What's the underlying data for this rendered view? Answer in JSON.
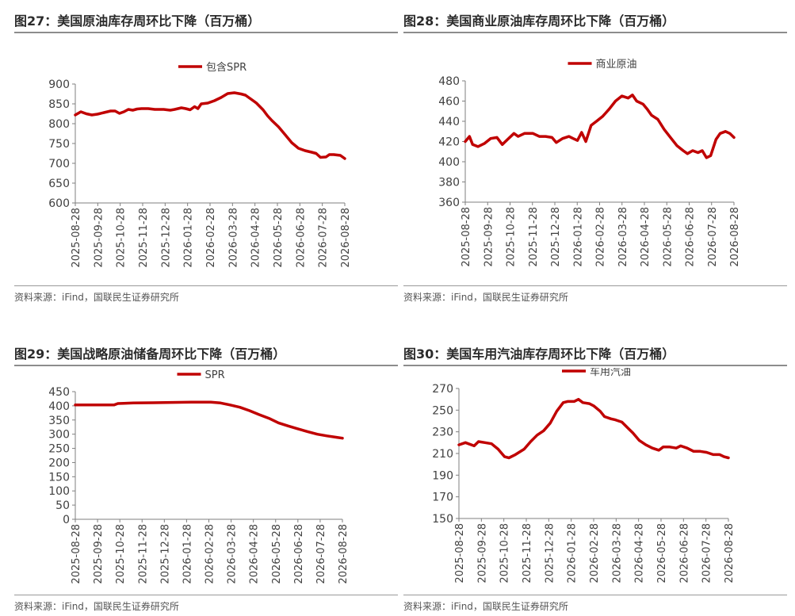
{
  "charts": [
    {
      "title": "图27：美国原油库存周环比下降（百万桶）",
      "source": "资料来源：iFind，国联民生证券研究所",
      "chart_data": {
        "type": "line",
        "ylim": [
          600,
          900
        ],
        "yticks": [
          600,
          650,
          700,
          750,
          800,
          850,
          900
        ],
        "xticks": [
          "2025-08-28",
          "2025-09-28",
          "2025-10-28",
          "2025-11-28",
          "2025-12-28",
          "2026-01-28",
          "2026-02-28",
          "2026-03-28",
          "2026-04-28",
          "2026-05-28",
          "2026-06-28",
          "2026-07-28",
          "2026-08-28"
        ],
        "legend_position": "top-center",
        "grid": false,
        "series": [
          {
            "name": "包含SPR",
            "color": "#c00000",
            "points": [
              [
                0,
                822
              ],
              [
                0.25,
                830
              ],
              [
                0.5,
                825
              ],
              [
                0.75,
                822
              ],
              [
                1,
                824
              ],
              [
                1.3,
                828
              ],
              [
                1.6,
                832
              ],
              [
                1.8,
                832
              ],
              [
                2,
                826
              ],
              [
                2.2,
                830
              ],
              [
                2.4,
                836
              ],
              [
                2.6,
                834
              ],
              [
                2.8,
                837
              ],
              [
                3,
                838
              ],
              [
                3.3,
                838
              ],
              [
                3.6,
                836
              ],
              [
                4,
                836
              ],
              [
                4.3,
                834
              ],
              [
                4.5,
                836
              ],
              [
                4.8,
                840
              ],
              [
                5,
                838
              ],
              [
                5.2,
                835
              ],
              [
                5.4,
                843
              ],
              [
                5.55,
                838
              ],
              [
                5.7,
                850
              ],
              [
                6,
                852
              ],
              [
                6.3,
                858
              ],
              [
                6.6,
                866
              ],
              [
                6.9,
                876
              ],
              [
                7.2,
                878
              ],
              [
                7.5,
                875
              ],
              [
                7.7,
                872
              ],
              [
                8,
                860
              ],
              [
                8.2,
                852
              ],
              [
                8.5,
                835
              ],
              [
                8.7,
                820
              ],
              [
                8.9,
                808
              ],
              [
                9.2,
                792
              ],
              [
                9.5,
                772
              ],
              [
                9.8,
                752
              ],
              [
                10.1,
                738
              ],
              [
                10.4,
                732
              ],
              [
                10.7,
                728
              ],
              [
                10.9,
                725
              ],
              [
                11.1,
                715
              ],
              [
                11.35,
                716
              ],
              [
                11.5,
                722
              ],
              [
                11.7,
                722
              ],
              [
                12,
                720
              ],
              [
                12.2,
                712
              ]
            ]
          }
        ]
      }
    },
    {
      "title": "图28：美国商业原油库存周环比下降（百万桶）",
      "source": "资料来源：iFind，国联民生证券研究所",
      "chart_data": {
        "type": "line",
        "ylim": [
          360,
          480
        ],
        "yticks": [
          360,
          380,
          400,
          420,
          440,
          460,
          480
        ],
        "xticks": [
          "2025-08-28",
          "2025-09-28",
          "2025-10-28",
          "2025-11-28",
          "2025-12-28",
          "2026-01-28",
          "2026-02-28",
          "2026-03-28",
          "2026-04-28",
          "2026-05-28",
          "2026-06-28",
          "2026-07-28",
          "2026-08-28"
        ],
        "legend_position": "top-center",
        "grid": false,
        "series": [
          {
            "name": "商业原油",
            "color": "#c00000",
            "points": [
              [
                0,
                420
              ],
              [
                0.2,
                425
              ],
              [
                0.35,
                417
              ],
              [
                0.6,
                415
              ],
              [
                0.9,
                418
              ],
              [
                1.2,
                423
              ],
              [
                1.5,
                424
              ],
              [
                1.75,
                417
              ],
              [
                2,
                422
              ],
              [
                2.3,
                428
              ],
              [
                2.5,
                425
              ],
              [
                2.8,
                428
              ],
              [
                3.2,
                428
              ],
              [
                3.5,
                425
              ],
              [
                3.8,
                425
              ],
              [
                4.1,
                424
              ],
              [
                4.3,
                419
              ],
              [
                4.6,
                423
              ],
              [
                4.9,
                425
              ],
              [
                5.1,
                423
              ],
              [
                5.3,
                421
              ],
              [
                5.5,
                429
              ],
              [
                5.7,
                420
              ],
              [
                5.95,
                436
              ],
              [
                6.2,
                440
              ],
              [
                6.5,
                445
              ],
              [
                6.8,
                452
              ],
              [
                7.1,
                460
              ],
              [
                7.4,
                465
              ],
              [
                7.7,
                463
              ],
              [
                7.9,
                466
              ],
              [
                8.1,
                460
              ],
              [
                8.4,
                457
              ],
              [
                8.6,
                452
              ],
              [
                8.8,
                446
              ],
              [
                9.1,
                442
              ],
              [
                9.4,
                432
              ],
              [
                9.7,
                424
              ],
              [
                10,
                416
              ],
              [
                10.3,
                411
              ],
              [
                10.5,
                408
              ],
              [
                10.75,
                411
              ],
              [
                11,
                409
              ],
              [
                11.2,
                411
              ],
              [
                11.4,
                404
              ],
              [
                11.6,
                406
              ],
              [
                11.85,
                422
              ],
              [
                12.05,
                428
              ],
              [
                12.3,
                430
              ],
              [
                12.5,
                428
              ],
              [
                12.7,
                424
              ]
            ]
          }
        ]
      }
    },
    {
      "title": "图29：美国战略原油储备周环比下降（百万桶）",
      "source": "资料来源：iFind，国联民生证券研究所",
      "chart_data": {
        "type": "line",
        "ylim": [
          0,
          450
        ],
        "yticks": [
          0,
          50,
          100,
          150,
          200,
          250,
          300,
          350,
          400,
          450
        ],
        "xticks": [
          "2025-08-28",
          "2025-09-28",
          "2025-10-28",
          "2025-11-28",
          "2025-12-28",
          "2026-01-28",
          "2026-02-28",
          "2026-03-28",
          "2026-04-28",
          "2026-05-28",
          "2026-06-28",
          "2026-07-28",
          "2026-08-28"
        ],
        "legend_position": "top-center",
        "grid": false,
        "series": [
          {
            "name": "SPR",
            "color": "#c00000",
            "points": [
              [
                0,
                403
              ],
              [
                0.5,
                403
              ],
              [
                1,
                403
              ],
              [
                1.5,
                403
              ],
              [
                2,
                403
              ],
              [
                2.2,
                408
              ],
              [
                2.5,
                409
              ],
              [
                3,
                410
              ],
              [
                4,
                411
              ],
              [
                5,
                412
              ],
              [
                6,
                413
              ],
              [
                7,
                413
              ],
              [
                7.5,
                410
              ],
              [
                8,
                403
              ],
              [
                8.5,
                395
              ],
              [
                9,
                383
              ],
              [
                9.5,
                369
              ],
              [
                10,
                356
              ],
              [
                10.5,
                340
              ],
              [
                11,
                329
              ],
              [
                11.5,
                319
              ],
              [
                12,
                309
              ],
              [
                12.5,
                300
              ],
              [
                13,
                294
              ],
              [
                13.5,
                289
              ],
              [
                13.8,
                286
              ]
            ]
          }
        ]
      }
    },
    {
      "title": "图30：美国车用汽油库存周环比下降（百万桶）",
      "source": "资料来源：iFind，国联民生证券研究所",
      "chart_data": {
        "type": "line",
        "ylim": [
          150,
          270
        ],
        "yticks": [
          150,
          170,
          190,
          210,
          230,
          250,
          270
        ],
        "xticks": [
          "2025-08-28",
          "2025-09-28",
          "2025-10-28",
          "2025-11-28",
          "2025-12-28",
          "2026-01-28",
          "2026-02-28",
          "2026-03-28",
          "2026-04-28",
          "2026-05-28",
          "2026-06-28",
          "2026-07-28",
          "2026-08-28"
        ],
        "legend_position": "top-center",
        "grid": false,
        "series": [
          {
            "name": "车用汽油",
            "color": "#c00000",
            "points": [
              [
                0,
                218
              ],
              [
                0.3,
                220
              ],
              [
                0.7,
                217
              ],
              [
                0.9,
                221
              ],
              [
                1.2,
                220
              ],
              [
                1.5,
                219
              ],
              [
                1.8,
                214
              ],
              [
                2.1,
                207
              ],
              [
                2.3,
                206
              ],
              [
                2.6,
                209
              ],
              [
                3,
                214
              ],
              [
                3.3,
                221
              ],
              [
                3.6,
                227
              ],
              [
                3.9,
                231
              ],
              [
                4.2,
                238
              ],
              [
                4.5,
                249
              ],
              [
                4.8,
                257
              ],
              [
                5,
                258
              ],
              [
                5.3,
                258
              ],
              [
                5.5,
                260
              ],
              [
                5.7,
                257
              ],
              [
                6,
                256
              ],
              [
                6.2,
                254
              ],
              [
                6.5,
                249
              ],
              [
                6.7,
                244
              ],
              [
                7,
                242
              ],
              [
                7.2,
                241
              ],
              [
                7.5,
                239
              ],
              [
                7.8,
                233
              ],
              [
                8,
                229
              ],
              [
                8.3,
                222
              ],
              [
                8.6,
                218
              ],
              [
                8.9,
                215
              ],
              [
                9.2,
                213
              ],
              [
                9.4,
                216
              ],
              [
                9.7,
                216
              ],
              [
                10,
                215
              ],
              [
                10.2,
                217
              ],
              [
                10.5,
                215
              ],
              [
                10.8,
                212
              ],
              [
                11.1,
                212
              ],
              [
                11.4,
                211
              ],
              [
                11.7,
                209
              ],
              [
                12,
                209
              ],
              [
                12.2,
                207
              ],
              [
                12.4,
                206
              ]
            ]
          }
        ]
      }
    }
  ]
}
